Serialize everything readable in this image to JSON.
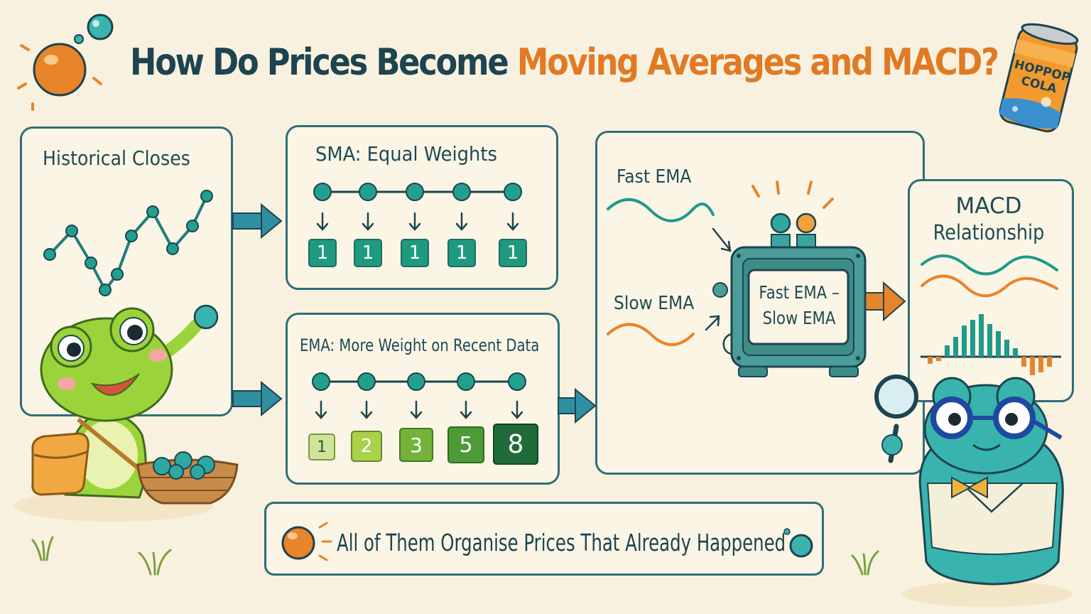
{
  "title": {
    "part1": "How Do Prices Become ",
    "part2": "Moving Averages and MACD?"
  },
  "cola_can": {
    "line1": "HOPPOP",
    "line2": "COLA"
  },
  "historical_panel": {
    "label": "Historical Closes"
  },
  "sma_panel": {
    "label": "SMA: Equal Weights",
    "weights": [
      "1",
      "1",
      "1",
      "1",
      "1"
    ]
  },
  "ema_panel": {
    "label": "EMA: More Weight on Recent Data",
    "weights": [
      "1",
      "2",
      "3",
      "5",
      "8"
    ]
  },
  "macd_machine_panel": {
    "fast_label": "Fast EMA",
    "slow_label": "Slow EMA",
    "formula_line1": "Fast EMA –",
    "formula_line2": "Slow EMA"
  },
  "macd_panel": {
    "line1": "MACD",
    "line2": "Relationship"
  },
  "banner": {
    "text": "All of Them Organise Prices That Already Happened"
  },
  "colors": {
    "background": "#f8f1df",
    "panel_border": "#2f6e78",
    "title_dark": "#1d4450",
    "title_orange": "#e07a24",
    "teal": "#1f9a8c",
    "orange": "#e8842a",
    "frog_green": "#9bd43a",
    "frog_teal": "#39b3ad"
  }
}
